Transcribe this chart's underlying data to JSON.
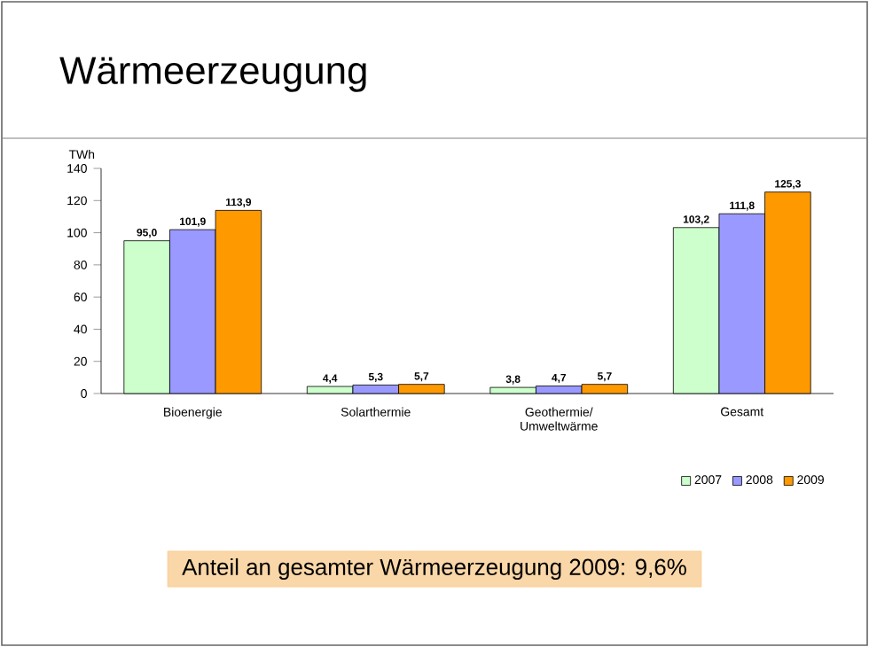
{
  "chart_data": {
    "type": "bar",
    "title": "Wärmeerzeugung",
    "ylabel": "TWh",
    "categories": [
      "Bioenergie",
      "Solarthermie",
      "Geothermie/ Umweltwärme",
      "Gesamt"
    ],
    "series": [
      {
        "name": "2007",
        "color": "#ccffcc",
        "values": [
          95.0,
          4.4,
          3.8,
          103.2
        ],
        "value_labels": [
          "95,0",
          "4,4",
          "3,8",
          "103,2"
        ]
      },
      {
        "name": "2008",
        "color": "#9999ff",
        "values": [
          101.9,
          5.3,
          4.7,
          111.8
        ],
        "value_labels": [
          "101,9",
          "5,3",
          "4,7",
          "111,8"
        ]
      },
      {
        "name": "2009",
        "color": "#ff9900",
        "values": [
          113.9,
          5.7,
          5.7,
          125.3
        ],
        "value_labels": [
          "113,9",
          "5,7",
          "5,7",
          "125,3"
        ]
      }
    ],
    "ylim": [
      0,
      140
    ],
    "yticks": [
      0,
      20,
      40,
      60,
      80,
      100,
      120,
      140
    ],
    "legend": "bottom right",
    "annotations": [
      "Anteil an gesamter Wärmeerzeugung 2009: 9,6%"
    ]
  }
}
